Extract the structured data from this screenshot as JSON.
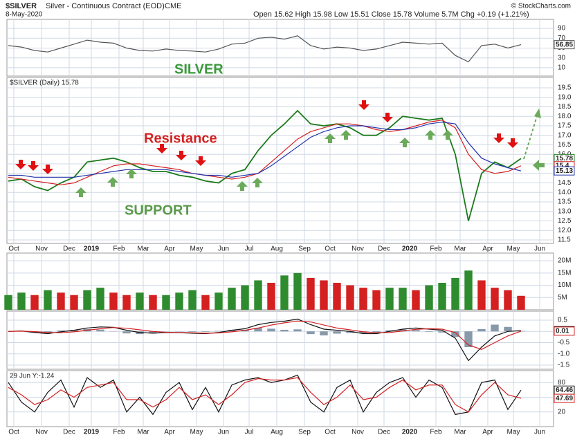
{
  "header": {
    "symbol": "$SILVER",
    "name": "Silver - Continuous Contract (EOD)",
    "exchange": "CME",
    "date": "8-May-2020",
    "quote": "Open 15.62 High 15.98 Low 15.51 Close 15.78 Volume 5.7M Chg +0.19 (+1.21%)",
    "credit": "© StockCharts.com"
  },
  "x_axis_labels": [
    "Oct",
    "Nov",
    "Dec",
    "2019",
    "Feb",
    "Mar",
    "Apr",
    "May",
    "Jun",
    "Jul",
    "Aug",
    "Sep",
    "Oct",
    "Nov",
    "Dec",
    "2020",
    "Feb",
    "Mar",
    "Apr",
    "May",
    "Jun"
  ],
  "chart_data": [
    {
      "type": "line",
      "ylim": [
        0,
        100
      ],
      "yticks": [
        10,
        30,
        50,
        70,
        90
      ],
      "grid": true,
      "series": [
        {
          "color": "#555555",
          "values": [
            55,
            52,
            45,
            42,
            50,
            58,
            66,
            62,
            60,
            50,
            45,
            44,
            48,
            45,
            44,
            42,
            48,
            58,
            60,
            70,
            72,
            68,
            75,
            55,
            48,
            52,
            50,
            45,
            48,
            55,
            62,
            60,
            58,
            60,
            35,
            22,
            55,
            58,
            50,
            56.85
          ]
        }
      ]
    },
    {
      "type": "line",
      "legend_text": "$SILVER (Daily) 15.78",
      "ylim": [
        11.3,
        19.9
      ],
      "yticks": [
        11.5,
        {
          "value": 12,
          "label": "12.0"
        },
        12.5,
        {
          "value": 13,
          "label": "13.0"
        },
        13.5,
        {
          "value": 14,
          "label": "14.0"
        },
        14.5,
        {
          "value": 15,
          "label": "15.0"
        },
        15.5,
        {
          "value": 16,
          "label": "16.0"
        },
        16.5,
        {
          "value": 17,
          "label": "17.0"
        },
        17.5,
        {
          "value": 18,
          "label": "18.0"
        },
        18.5,
        {
          "value": 19,
          "label": "19.0"
        },
        19.5
      ],
      "grid": true,
      "annotations": [
        "SILVER",
        "Resistance",
        "SUPPORT"
      ],
      "series": [
        {
          "color": "#1a7a1a",
          "values": [
            14.6,
            14.7,
            14.3,
            14.1,
            14.5,
            14.8,
            15.6,
            15.7,
            15.8,
            15.6,
            15.3,
            15.1,
            15.1,
            14.9,
            14.8,
            14.6,
            14.5,
            15.0,
            15.2,
            16.2,
            17.0,
            17.6,
            18.3,
            17.6,
            17.5,
            17.6,
            17.4,
            17.0,
            17.0,
            17.4,
            18.0,
            17.9,
            17.8,
            17.9,
            16.0,
            12.5,
            15.0,
            15.6,
            15.3,
            15.78
          ]
        },
        {
          "color": "#d42020",
          "values": [
            14.8,
            14.7,
            14.6,
            14.5,
            14.4,
            14.5,
            14.8,
            15.1,
            15.4,
            15.5,
            15.5,
            15.4,
            15.3,
            15.2,
            15.0,
            14.9,
            14.8,
            14.7,
            14.8,
            15.0,
            15.6,
            16.2,
            16.8,
            17.2,
            17.4,
            17.6,
            17.6,
            17.5,
            17.3,
            17.2,
            17.3,
            17.5,
            17.7,
            17.8,
            17.4,
            16.0,
            15.2,
            15.0,
            15.1,
            15.4
          ]
        },
        {
          "color": "#2233aa",
          "values": [
            14.9,
            14.9,
            14.8,
            14.8,
            14.8,
            14.8,
            14.9,
            15.0,
            15.1,
            15.2,
            15.2,
            15.2,
            15.2,
            15.1,
            15.0,
            14.9,
            14.9,
            14.8,
            14.9,
            15.0,
            15.4,
            15.9,
            16.4,
            16.9,
            17.2,
            17.4,
            17.5,
            17.5,
            17.4,
            17.3,
            17.3,
            17.4,
            17.6,
            17.7,
            17.6,
            16.6,
            15.8,
            15.5,
            15.3,
            15.13
          ]
        }
      ]
    },
    {
      "type": "bar",
      "ylim": [
        0,
        22
      ],
      "yticks": [
        {
          "value": 5,
          "label": "5M"
        },
        {
          "value": 10,
          "label": "10M"
        },
        {
          "value": 15,
          "label": "15M"
        },
        {
          "value": 20,
          "label": "20M"
        }
      ],
      "grid": true,
      "up_color": "#2e8b2e",
      "down_color": "#d42020",
      "values": [
        6,
        7,
        6,
        8,
        7,
        6,
        8,
        9,
        7,
        6,
        7,
        6,
        6,
        7,
        8,
        6,
        7,
        9,
        10,
        12,
        11,
        14,
        15,
        13,
        12,
        11,
        10,
        9,
        8,
        9,
        9,
        8,
        10,
        11,
        13,
        16,
        12,
        9,
        8,
        5.7
      ]
    },
    {
      "type": "line",
      "ylim": [
        -1.7,
        0.8
      ],
      "yticks": [
        -1.5,
        {
          "value": -1,
          "label": "-1.0"
        },
        -0.5,
        0,
        0.5
      ],
      "grid": true,
      "histogram": {
        "color": "#8899aa",
        "values": [
          0,
          0.01,
          -0.04,
          -0.05,
          0.04,
          0.07,
          0.1,
          0.08,
          0.01,
          -0.09,
          -0.12,
          -0.08,
          -0.01,
          -0.01,
          -0.02,
          -0.02,
          0.02,
          0.07,
          0.07,
          0.15,
          0.12,
          0.07,
          0.09,
          -0.12,
          -0.18,
          -0.1,
          -0.07,
          -0.08,
          -0.04,
          0.05,
          0.08,
          0.06,
          -0.02,
          -0.05,
          -0.25,
          -0.7,
          0.1,
          0.3,
          0.2,
          0.022
        ]
      },
      "series": [
        {
          "color": "#111111",
          "values": [
            0,
            0.02,
            -0.05,
            -0.1,
            -0.02,
            0.05,
            0.15,
            0.2,
            0.18,
            0.05,
            -0.05,
            -0.08,
            -0.05,
            -0.06,
            -0.08,
            -0.1,
            -0.05,
            0.05,
            0.12,
            0.3,
            0.4,
            0.45,
            0.55,
            0.3,
            0.1,
            0.05,
            0,
            -0.1,
            -0.1,
            0,
            0.1,
            0.15,
            0.1,
            0.05,
            -0.3,
            -1.3,
            -0.7,
            -0.2,
            0,
            0.032
          ]
        },
        {
          "color": "#d42020",
          "values": [
            0,
            0.01,
            -0.01,
            -0.05,
            -0.06,
            -0.02,
            0.05,
            0.12,
            0.17,
            0.14,
            0.07,
            0,
            -0.04,
            -0.05,
            -0.06,
            -0.08,
            -0.07,
            -0.02,
            0.05,
            0.15,
            0.28,
            0.38,
            0.46,
            0.42,
            0.28,
            0.15,
            0.07,
            -0.02,
            -0.06,
            -0.05,
            0.02,
            0.09,
            0.12,
            0.1,
            -0.05,
            -0.6,
            -0.8,
            -0.5,
            -0.2,
            0.01
          ]
        }
      ]
    },
    {
      "type": "line",
      "legend_text": "29 Jun Y:-1.24",
      "ylim": [
        0,
        100
      ],
      "yticks": [
        20,
        50,
        80
      ],
      "grid": true,
      "series": [
        {
          "color": "#111111",
          "values": [
            80,
            40,
            20,
            60,
            85,
            30,
            90,
            70,
            85,
            20,
            50,
            15,
            60,
            80,
            25,
            70,
            20,
            75,
            85,
            90,
            80,
            85,
            95,
            40,
            20,
            70,
            85,
            20,
            60,
            80,
            90,
            50,
            85,
            70,
            15,
            20,
            80,
            85,
            25,
            64.46
          ]
        },
        {
          "color": "#d42020",
          "values": [
            70,
            55,
            35,
            45,
            65,
            50,
            70,
            75,
            80,
            45,
            45,
            30,
            45,
            70,
            45,
            55,
            35,
            55,
            80,
            88,
            85,
            85,
            90,
            60,
            35,
            50,
            75,
            45,
            50,
            70,
            85,
            65,
            75,
            75,
            35,
            20,
            55,
            80,
            55,
            47.69
          ]
        }
      ]
    }
  ]
}
